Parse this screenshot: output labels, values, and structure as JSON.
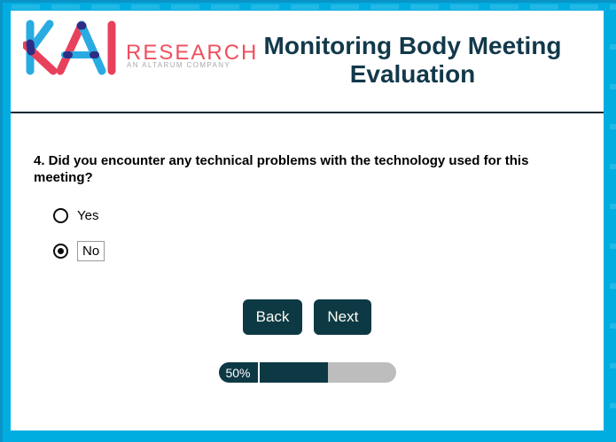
{
  "page": {
    "background_color": "#00ade1",
    "accent_color": "#0d3945"
  },
  "logo": {
    "brand": "KAI",
    "word": "RESEARCH",
    "tagline": "AN ALTARUM COMPANY",
    "colors": {
      "blue": "#29abe2",
      "red": "#e8415c",
      "overlap": "#2d2d86",
      "word": "#ef4f5e",
      "tagline": "#a9a9a9"
    }
  },
  "header": {
    "title": "Monitoring Body Meeting Evaluation"
  },
  "question": {
    "text": "4. Did you encounter any technical problems with the technology used for this meeting?",
    "options": [
      {
        "label": "Yes",
        "selected": false
      },
      {
        "label": "No",
        "selected": true
      }
    ]
  },
  "buttons": {
    "back": "Back",
    "next": "Next"
  },
  "progress": {
    "label": "50%",
    "percent": 50
  }
}
